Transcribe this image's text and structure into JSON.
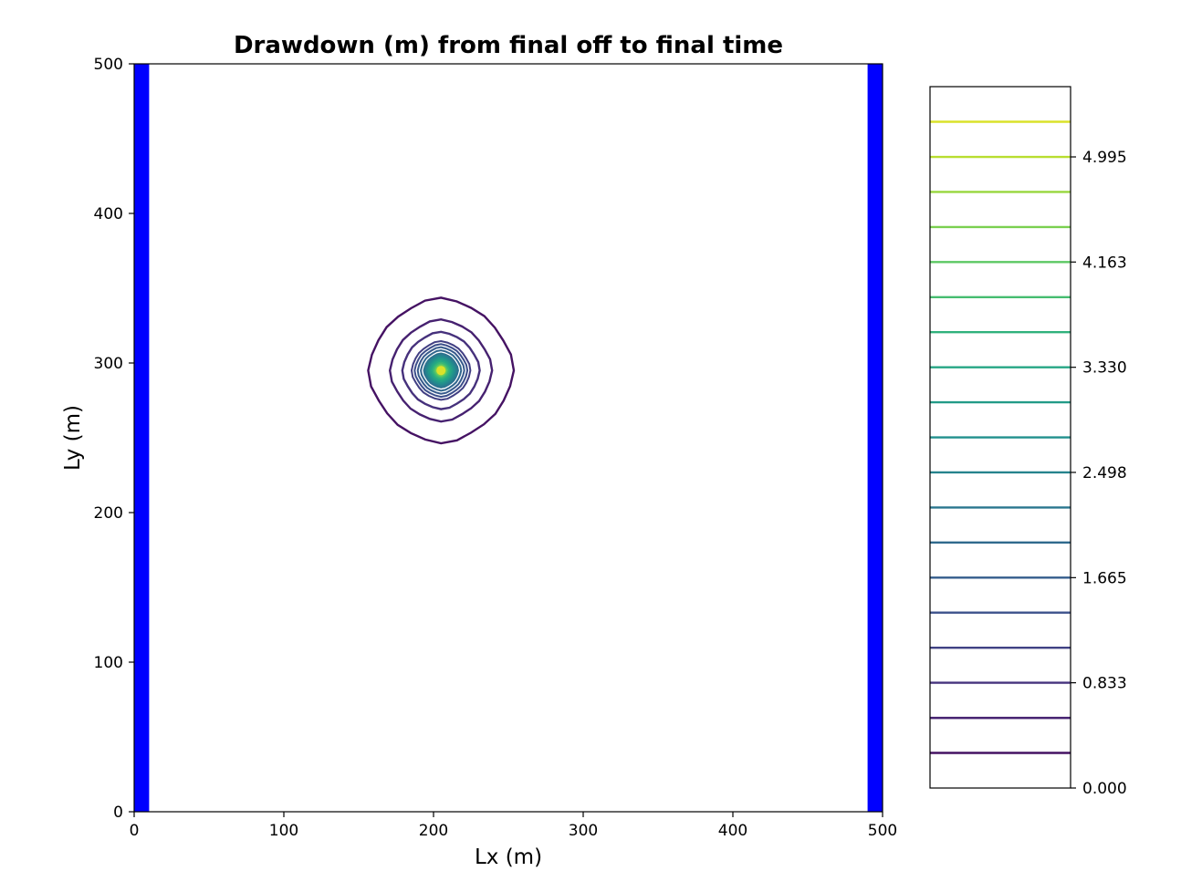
{
  "chart_data": {
    "type": "contour",
    "title": "Drawdown (m) from final off to final time",
    "xlabel": "Lx (m)",
    "ylabel": "Ly (m)",
    "xlim": [
      0,
      500
    ],
    "ylim": [
      0,
      500
    ],
    "x_ticks": [
      0,
      100,
      200,
      300,
      400,
      500
    ],
    "y_ticks": [
      0,
      100,
      200,
      300,
      400,
      500
    ],
    "x_tick_labels": [
      "0",
      "100",
      "200",
      "300",
      "400",
      "500"
    ],
    "y_tick_labels": [
      "0",
      "100",
      "200",
      "300",
      "400",
      "500"
    ],
    "grid": false,
    "boundary_strips": [
      {
        "x_start": 0,
        "x_end": 10,
        "color": "#0000ff"
      },
      {
        "x_start": 490,
        "x_end": 500,
        "color": "#0000ff"
      }
    ],
    "well_center": {
      "x": 205,
      "y": 295
    },
    "contour_radii": [
      47,
      33,
      25,
      19,
      17,
      15,
      13,
      11,
      10,
      9,
      8,
      7,
      6,
      5,
      4,
      3.4,
      2.8,
      2.2,
      1.6,
      1.0
    ],
    "contour_levels": [
      0.278,
      0.555,
      0.833,
      1.11,
      1.388,
      1.665,
      1.943,
      2.22,
      2.498,
      2.775,
      3.053,
      3.33,
      3.608,
      3.885,
      4.163,
      4.44,
      4.718,
      4.995,
      5.273
    ],
    "colorbar": {
      "min": 0.0,
      "max": 5.551,
      "tick_values": [
        0.0,
        0.833,
        1.665,
        2.498,
        3.33,
        4.163,
        4.995
      ],
      "tick_labels": [
        "0.000",
        "0.833",
        "1.665",
        "2.498",
        "3.330",
        "4.163",
        "4.995"
      ],
      "colormap": "viridis"
    }
  }
}
